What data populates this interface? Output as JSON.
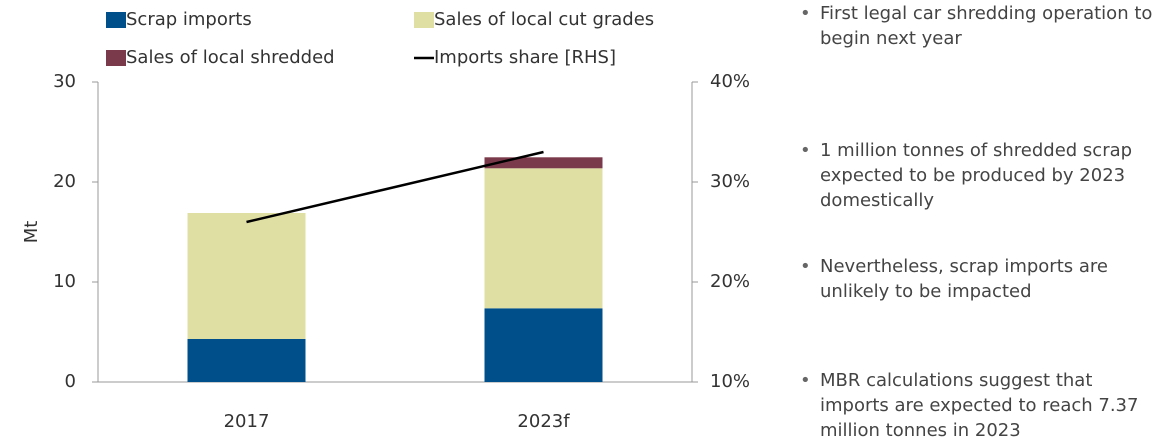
{
  "chart_data": {
    "type": "bar",
    "stacked": true,
    "y_label": "Mt",
    "categories": [
      "2017",
      "2023f"
    ],
    "series": [
      {
        "name": "Scrap imports",
        "color": "#004f8a",
        "values": [
          4.3,
          7.37
        ]
      },
      {
        "name": "Sales of local cut grades",
        "color": "#dfdfa4",
        "values": [
          12.6,
          14.0
        ]
      },
      {
        "name": "Sales of local shredded",
        "color": "#7b3a4b",
        "values": [
          0,
          1.1
        ]
      },
      {
        "name": "Imports share [RHS]",
        "color": "#000000",
        "type": "line",
        "axis": "y2",
        "values": [
          26,
          33
        ]
      }
    ],
    "ylim": [
      0,
      30
    ],
    "yticks": [
      0,
      10,
      20,
      30
    ],
    "y2lim": [
      10,
      40
    ],
    "y2ticks": [
      {
        "value": 10,
        "label": "10%"
      },
      {
        "value": 20,
        "label": "20%"
      },
      {
        "value": 30,
        "label": "30%"
      },
      {
        "value": 40,
        "label": "40%"
      }
    ],
    "grid": false
  },
  "notes": [
    "First legal car shredding operation to begin next year",
    "1 million tonnes of shredded scrap expected to be produced by 2023 domestically",
    "Nevertheless, scrap imports are unlikely to be impacted",
    "MBR calculations suggest that imports are expected to reach 7.37 million tonnes in 2023"
  ]
}
